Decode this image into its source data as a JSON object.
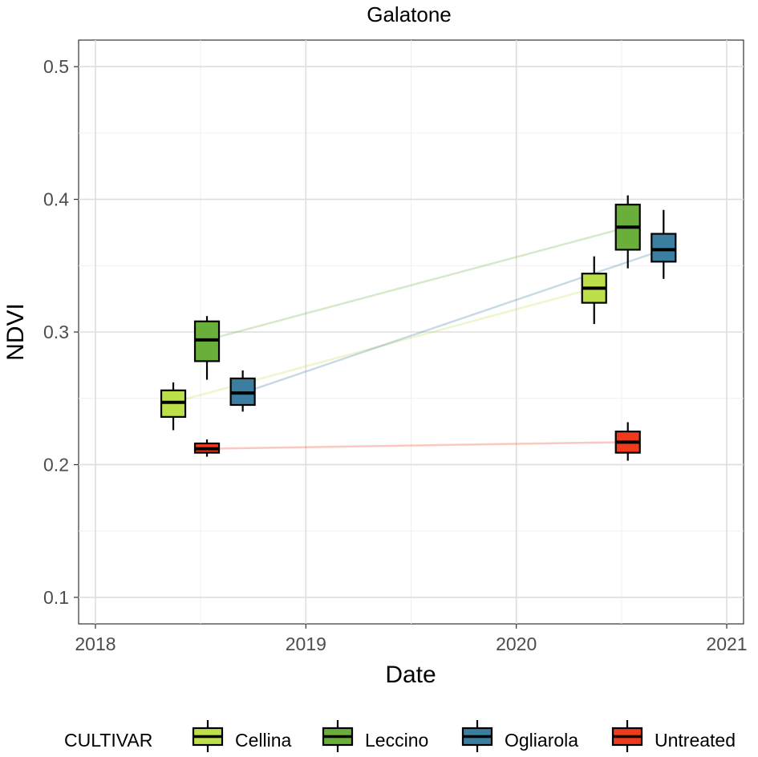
{
  "chart_data": {
    "type": "boxplot",
    "title": "Galatone",
    "xlabel": "Date",
    "ylabel": "NDVI",
    "x_ticks": [
      "2018",
      "2019",
      "2020",
      "2021"
    ],
    "y_ticks": [
      "0.1",
      "0.2",
      "0.3",
      "0.4",
      "0.5"
    ],
    "xlim": [
      2017.92,
      2021.08
    ],
    "ylim": [
      0.08,
      0.52
    ],
    "grid": true,
    "legend": {
      "title": "CULTIVAR",
      "position": "bottom"
    },
    "series": [
      {
        "name": "Cellina",
        "color": "#bde04a",
        "boxes": [
          {
            "x": 2018.37,
            "min": 0.226,
            "q1": 0.236,
            "median": 0.247,
            "q3": 0.256,
            "max": 0.262
          },
          {
            "x": 2020.37,
            "min": 0.306,
            "q1": 0.322,
            "median": 0.333,
            "q3": 0.344,
            "max": 0.357
          }
        ]
      },
      {
        "name": "Leccino",
        "color": "#6aaf3a",
        "boxes": [
          {
            "x": 2018.53,
            "min": 0.264,
            "q1": 0.278,
            "median": 0.294,
            "q3": 0.308,
            "max": 0.312
          },
          {
            "x": 2020.53,
            "min": 0.348,
            "q1": 0.362,
            "median": 0.379,
            "q3": 0.396,
            "max": 0.403
          }
        ]
      },
      {
        "name": "Ogliarola",
        "color": "#3a7ea0",
        "boxes": [
          {
            "x": 2018.7,
            "min": 0.24,
            "q1": 0.245,
            "median": 0.254,
            "q3": 0.265,
            "max": 0.271
          },
          {
            "x": 2020.7,
            "min": 0.34,
            "q1": 0.353,
            "median": 0.362,
            "q3": 0.374,
            "max": 0.392
          }
        ]
      },
      {
        "name": "Untreated",
        "color": "#f03a1e",
        "boxes": [
          {
            "x": 2018.53,
            "min": 0.206,
            "q1": 0.209,
            "median": 0.212,
            "q3": 0.216,
            "max": 0.219
          },
          {
            "x": 2020.53,
            "min": 0.203,
            "q1": 0.209,
            "median": 0.217,
            "q3": 0.225,
            "max": 0.232
          }
        ]
      }
    ]
  }
}
